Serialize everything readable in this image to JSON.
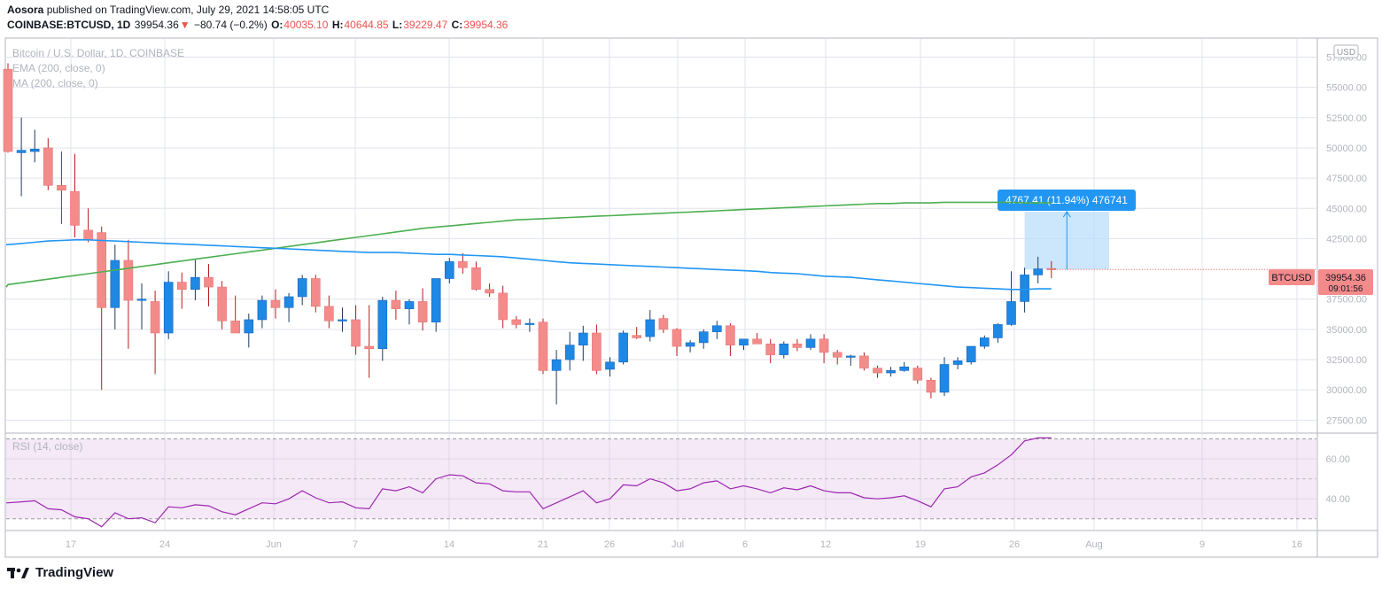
{
  "header": {
    "publisher": "Aosora",
    "published_text": "published on TradingView.com, July 29, 2021 14:58:05 UTC",
    "symbol": "COINBASE:BTCUSD, 1D",
    "last": "39954.36",
    "arrow": "▼",
    "change": "−80.74 (−0.2%)",
    "o_label": "O:",
    "o": "40035.10",
    "h_label": "H:",
    "h": "40644.85",
    "l_label": "L:",
    "l": "39229.47",
    "c_label": "C:",
    "c": "39954.36"
  },
  "legend": {
    "title": "Bitcoin / U.S. Dollar, 1D, COINBASE",
    "ema": "EMA (200, close, 0)",
    "ma": "MA (200, close, 0)",
    "rsi": "RSI (14, close)"
  },
  "axis": {
    "currency": "USD",
    "price_ticks": [
      "57500.00",
      "55000.00",
      "52500.00",
      "50000.00",
      "47500.00",
      "45000.00",
      "42500.00",
      "37500.00",
      "35000.00",
      "32500.00",
      "30000.00",
      "27500.00"
    ],
    "rsi_ticks": [
      "60.00",
      "40.00"
    ],
    "time_labels": [
      "17",
      "24",
      "Jun",
      "7",
      "14",
      "21",
      "26",
      "Jul",
      "6",
      "12",
      "19",
      "26",
      "Aug",
      "9",
      "16"
    ]
  },
  "price_label": {
    "symbol": "BTCUSD",
    "price": "39954.36",
    "countdown": "09:01:56"
  },
  "measure": {
    "label": "4767.41 (11.94%) 476741"
  },
  "footer": {
    "brand": "TradingView"
  },
  "colors": {
    "up": "#2962ff",
    "down": "#ef5350",
    "up_fill": "#1e88e5",
    "down_fill": "#f48b8b",
    "ema": "#4caf50",
    "ma": "#2196f3",
    "rsi": "#9c27b0"
  },
  "chart_data": {
    "type": "candlestick",
    "title": "Bitcoin / U.S. Dollar, 1D, COINBASE",
    "ylim": [
      26500,
      59000
    ],
    "candles": [
      {
        "o": 56500,
        "h": 57000,
        "l": 49600,
        "c": 49700
      },
      {
        "o": 49600,
        "h": 52500,
        "l": 46000,
        "c": 49800
      },
      {
        "o": 49700,
        "h": 51500,
        "l": 48800,
        "c": 49900
      },
      {
        "o": 50000,
        "h": 50800,
        "l": 46500,
        "c": 46900
      },
      {
        "o": 46900,
        "h": 49700,
        "l": 43700,
        "c": 46500
      },
      {
        "o": 46400,
        "h": 49500,
        "l": 42600,
        "c": 43600
      },
      {
        "o": 43200,
        "h": 45000,
        "l": 42200,
        "c": 42400
      },
      {
        "o": 43000,
        "h": 43500,
        "l": 30000,
        "c": 36800
      },
      {
        "o": 36800,
        "h": 42000,
        "l": 35000,
        "c": 40700
      },
      {
        "o": 40700,
        "h": 42400,
        "l": 33400,
        "c": 37400
      },
      {
        "o": 37400,
        "h": 38800,
        "l": 35000,
        "c": 37500
      },
      {
        "o": 37300,
        "h": 38200,
        "l": 31300,
        "c": 34700
      },
      {
        "o": 34700,
        "h": 39800,
        "l": 34200,
        "c": 38900
      },
      {
        "o": 38900,
        "h": 39700,
        "l": 36700,
        "c": 38300
      },
      {
        "o": 38300,
        "h": 40800,
        "l": 37400,
        "c": 39300
      },
      {
        "o": 39300,
        "h": 40400,
        "l": 36900,
        "c": 38500
      },
      {
        "o": 38500,
        "h": 39000,
        "l": 35000,
        "c": 35700
      },
      {
        "o": 35700,
        "h": 37800,
        "l": 34800,
        "c": 34700
      },
      {
        "o": 34700,
        "h": 36300,
        "l": 33500,
        "c": 35800
      },
      {
        "o": 35800,
        "h": 37800,
        "l": 35100,
        "c": 37400
      },
      {
        "o": 37400,
        "h": 38300,
        "l": 35900,
        "c": 36800
      },
      {
        "o": 36800,
        "h": 38000,
        "l": 35600,
        "c": 37700
      },
      {
        "o": 37700,
        "h": 39500,
        "l": 37000,
        "c": 39200
      },
      {
        "o": 39200,
        "h": 39500,
        "l": 36400,
        "c": 36900
      },
      {
        "o": 36900,
        "h": 37800,
        "l": 35100,
        "c": 35700
      },
      {
        "o": 35700,
        "h": 36800,
        "l": 34800,
        "c": 35800
      },
      {
        "o": 35800,
        "h": 37000,
        "l": 32900,
        "c": 33600
      },
      {
        "o": 33600,
        "h": 37000,
        "l": 31000,
        "c": 33400
      },
      {
        "o": 33400,
        "h": 37700,
        "l": 32400,
        "c": 37400
      },
      {
        "o": 37400,
        "h": 38200,
        "l": 35800,
        "c": 36700
      },
      {
        "o": 36700,
        "h": 37500,
        "l": 35400,
        "c": 37300
      },
      {
        "o": 37300,
        "h": 38400,
        "l": 34900,
        "c": 35600
      },
      {
        "o": 35600,
        "h": 39200,
        "l": 34800,
        "c": 39200
      },
      {
        "o": 39200,
        "h": 40900,
        "l": 38800,
        "c": 40600
      },
      {
        "o": 40600,
        "h": 41300,
        "l": 39600,
        "c": 40100
      },
      {
        "o": 40100,
        "h": 40600,
        "l": 38200,
        "c": 38300
      },
      {
        "o": 38300,
        "h": 38800,
        "l": 37700,
        "c": 38000
      },
      {
        "o": 38000,
        "h": 38600,
        "l": 35100,
        "c": 35800
      },
      {
        "o": 35800,
        "h": 36100,
        "l": 35100,
        "c": 35400
      },
      {
        "o": 35400,
        "h": 35900,
        "l": 34800,
        "c": 35500
      },
      {
        "o": 35600,
        "h": 35900,
        "l": 31300,
        "c": 31600
      },
      {
        "o": 31600,
        "h": 33300,
        "l": 28800,
        "c": 32500
      },
      {
        "o": 32500,
        "h": 34800,
        "l": 31600,
        "c": 33700
      },
      {
        "o": 33700,
        "h": 35300,
        "l": 32400,
        "c": 34700
      },
      {
        "o": 34700,
        "h": 35400,
        "l": 31300,
        "c": 31600
      },
      {
        "o": 31700,
        "h": 32700,
        "l": 31100,
        "c": 32300
      },
      {
        "o": 32300,
        "h": 34900,
        "l": 32100,
        "c": 34700
      },
      {
        "o": 34500,
        "h": 35200,
        "l": 34200,
        "c": 34300
      },
      {
        "o": 34400,
        "h": 36600,
        "l": 34000,
        "c": 35800
      },
      {
        "o": 35900,
        "h": 36200,
        "l": 34700,
        "c": 35000
      },
      {
        "o": 35000,
        "h": 35100,
        "l": 32800,
        "c": 33600
      },
      {
        "o": 33600,
        "h": 34100,
        "l": 33100,
        "c": 33900
      },
      {
        "o": 33900,
        "h": 35000,
        "l": 33400,
        "c": 34800
      },
      {
        "o": 34800,
        "h": 35700,
        "l": 34200,
        "c": 35300
      },
      {
        "o": 35300,
        "h": 35500,
        "l": 32800,
        "c": 33700
      },
      {
        "o": 33700,
        "h": 34200,
        "l": 33300,
        "c": 34200
      },
      {
        "o": 34200,
        "h": 34700,
        "l": 33800,
        "c": 33800
      },
      {
        "o": 33800,
        "h": 34200,
        "l": 32200,
        "c": 32900
      },
      {
        "o": 32900,
        "h": 34000,
        "l": 32600,
        "c": 33800
      },
      {
        "o": 33800,
        "h": 34200,
        "l": 33200,
        "c": 33500
      },
      {
        "o": 33500,
        "h": 34600,
        "l": 33300,
        "c": 34200
      },
      {
        "o": 34200,
        "h": 34600,
        "l": 32200,
        "c": 33100
      },
      {
        "o": 33100,
        "h": 33300,
        "l": 32100,
        "c": 32700
      },
      {
        "o": 32800,
        "h": 32900,
        "l": 32000,
        "c": 32800
      },
      {
        "o": 32800,
        "h": 33100,
        "l": 31600,
        "c": 31800
      },
      {
        "o": 31800,
        "h": 32000,
        "l": 31000,
        "c": 31400
      },
      {
        "o": 31400,
        "h": 31900,
        "l": 31100,
        "c": 31600
      },
      {
        "o": 31600,
        "h": 32300,
        "l": 31500,
        "c": 31900
      },
      {
        "o": 31800,
        "h": 32000,
        "l": 30500,
        "c": 30800
      },
      {
        "o": 30800,
        "h": 31000,
        "l": 29300,
        "c": 29800
      },
      {
        "o": 29800,
        "h": 32700,
        "l": 29500,
        "c": 32100
      },
      {
        "o": 32100,
        "h": 32700,
        "l": 31700,
        "c": 32400
      },
      {
        "o": 32300,
        "h": 33500,
        "l": 32100,
        "c": 33600
      },
      {
        "o": 33600,
        "h": 34500,
        "l": 33400,
        "c": 34300
      },
      {
        "o": 34300,
        "h": 35500,
        "l": 33900,
        "c": 35400
      },
      {
        "o": 35400,
        "h": 39800,
        "l": 35300,
        "c": 37300
      },
      {
        "o": 37300,
        "h": 40100,
        "l": 36400,
        "c": 39500
      },
      {
        "o": 39500,
        "h": 41000,
        "l": 38800,
        "c": 40000
      },
      {
        "o": 40035,
        "h": 40645,
        "l": 39229,
        "c": 39954
      }
    ],
    "ema_200": [
      42000,
      42100,
      42200,
      42300,
      42350,
      42400,
      42400,
      42350,
      42300,
      42250,
      42200,
      42150,
      42100,
      42050,
      42000,
      41950,
      41900,
      41850,
      41800,
      41750,
      41700,
      41650,
      41600,
      41550,
      41500,
      41450,
      41400,
      41350,
      41350,
      41350,
      41300,
      41250,
      41200,
      41200,
      41150,
      41100,
      41050,
      41000,
      40900,
      40800,
      40700,
      40600,
      40500,
      40450,
      40400,
      40350,
      40300,
      40250,
      40200,
      40150,
      40100,
      40050,
      40000,
      39950,
      39900,
      39850,
      39800,
      39700,
      39650,
      39600,
      39500,
      39400,
      39350,
      39300,
      39200,
      39100,
      39000,
      38900,
      38800,
      38700,
      38600,
      38500,
      38450,
      38400,
      38350,
      38300,
      38300,
      38350,
      38350
    ],
    "ma_200": [
      38700,
      38850,
      39000,
      39150,
      39300,
      39450,
      39600,
      39750,
      39900,
      40050,
      40200,
      40350,
      40500,
      40650,
      40800,
      40950,
      41100,
      41250,
      41400,
      41550,
      41700,
      41850,
      42000,
      42150,
      42300,
      42450,
      42600,
      42750,
      42900,
      43050,
      43200,
      43350,
      43450,
      43550,
      43650,
      43750,
      43850,
      43950,
      44050,
      44100,
      44150,
      44200,
      44250,
      44300,
      44350,
      44400,
      44450,
      44500,
      44550,
      44600,
      44650,
      44700,
      44750,
      44800,
      44850,
      44900,
      44950,
      45000,
      45050,
      45100,
      45150,
      45200,
      45250,
      45300,
      45350,
      45400,
      45400,
      45450,
      45450,
      45450,
      45500,
      45500,
      45500,
      45500,
      45500,
      45500,
      45450,
      45450,
      45450
    ],
    "rsi": {
      "name": "RSI (14, close)",
      "ylim": [
        25,
        72
      ],
      "overbought": 70,
      "oversold": 30,
      "values": [
        38,
        38.5,
        39,
        35,
        34.5,
        31,
        30,
        26,
        33,
        30,
        30.5,
        28,
        36,
        35.5,
        37,
        36.5,
        33.5,
        32,
        35,
        38,
        37.5,
        40,
        44,
        40.5,
        38,
        38.5,
        35.5,
        35,
        45,
        44,
        46,
        43,
        50,
        52,
        51.5,
        48,
        47.5,
        44,
        43.5,
        43.5,
        35,
        38,
        41,
        44,
        38,
        40,
        47,
        46.5,
        50,
        48,
        44,
        45,
        48,
        49,
        45,
        46.5,
        45,
        43,
        45.5,
        44.5,
        46.5,
        44,
        43,
        43,
        40.5,
        40,
        40.5,
        41.5,
        39,
        36,
        45,
        46,
        51,
        53,
        57,
        62,
        69,
        70.5,
        70.5
      ]
    }
  }
}
